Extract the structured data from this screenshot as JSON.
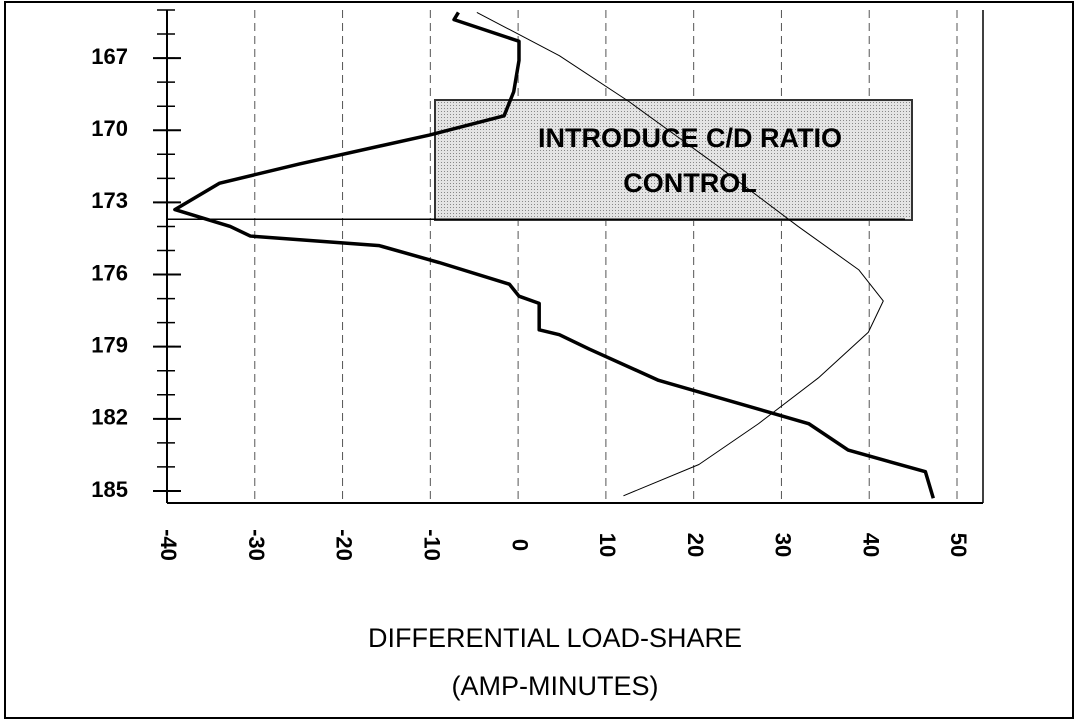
{
  "chart_data": {
    "type": "line",
    "xlabel": [
      "DIFFERENTIAL LOAD-SHARE",
      "(AMP-MINUTES)"
    ],
    "annotation": {
      "text": [
        "INTRODUCE C/D RATIO",
        "CONTROL"
      ],
      "y": 173.7
    },
    "xlim": [
      -40,
      50
    ],
    "xticks": [
      -40,
      -30,
      -20,
      -10,
      0,
      10,
      20,
      30,
      40,
      50
    ],
    "ylim": [
      165,
      185.5
    ],
    "yticks": [
      167,
      170,
      173,
      176,
      179,
      182,
      185
    ],
    "grid": true,
    "series": [
      {
        "color": "#000000",
        "width": 3.5,
        "x": [
          -6.8,
          -7.3,
          0.1,
          0.1,
          -0.5,
          -1.6,
          -10.1,
          -24.9,
          -34,
          -39.1,
          -32.8,
          -30.5,
          -15.8,
          -9,
          -1,
          0.1,
          2.4,
          2.4,
          4.7,
          8.1,
          16,
          33.1,
          37.6,
          46.4,
          47.3
        ],
        "y": [
          165.1,
          165.4,
          166.3,
          167.1,
          168.4,
          169.4,
          170.2,
          171.4,
          172.2,
          173.3,
          174.0,
          174.4,
          174.8,
          175.5,
          176.4,
          176.9,
          177.2,
          178.3,
          178.5,
          179.1,
          180.4,
          182.2,
          183.3,
          184.2,
          185.3
        ]
      },
      {
        "color": "#000000",
        "width": 1,
        "x": [
          -4.7,
          4.7,
          12.6,
          22.8,
          31.9,
          38.8,
          41.6,
          39.9,
          34.2,
          27.4,
          20.6,
          12
        ],
        "y": [
          165.1,
          166.9,
          168.8,
          171.5,
          174.0,
          175.8,
          177.1,
          178.4,
          180.3,
          182.2,
          183.9,
          185.2
        ]
      }
    ]
  }
}
